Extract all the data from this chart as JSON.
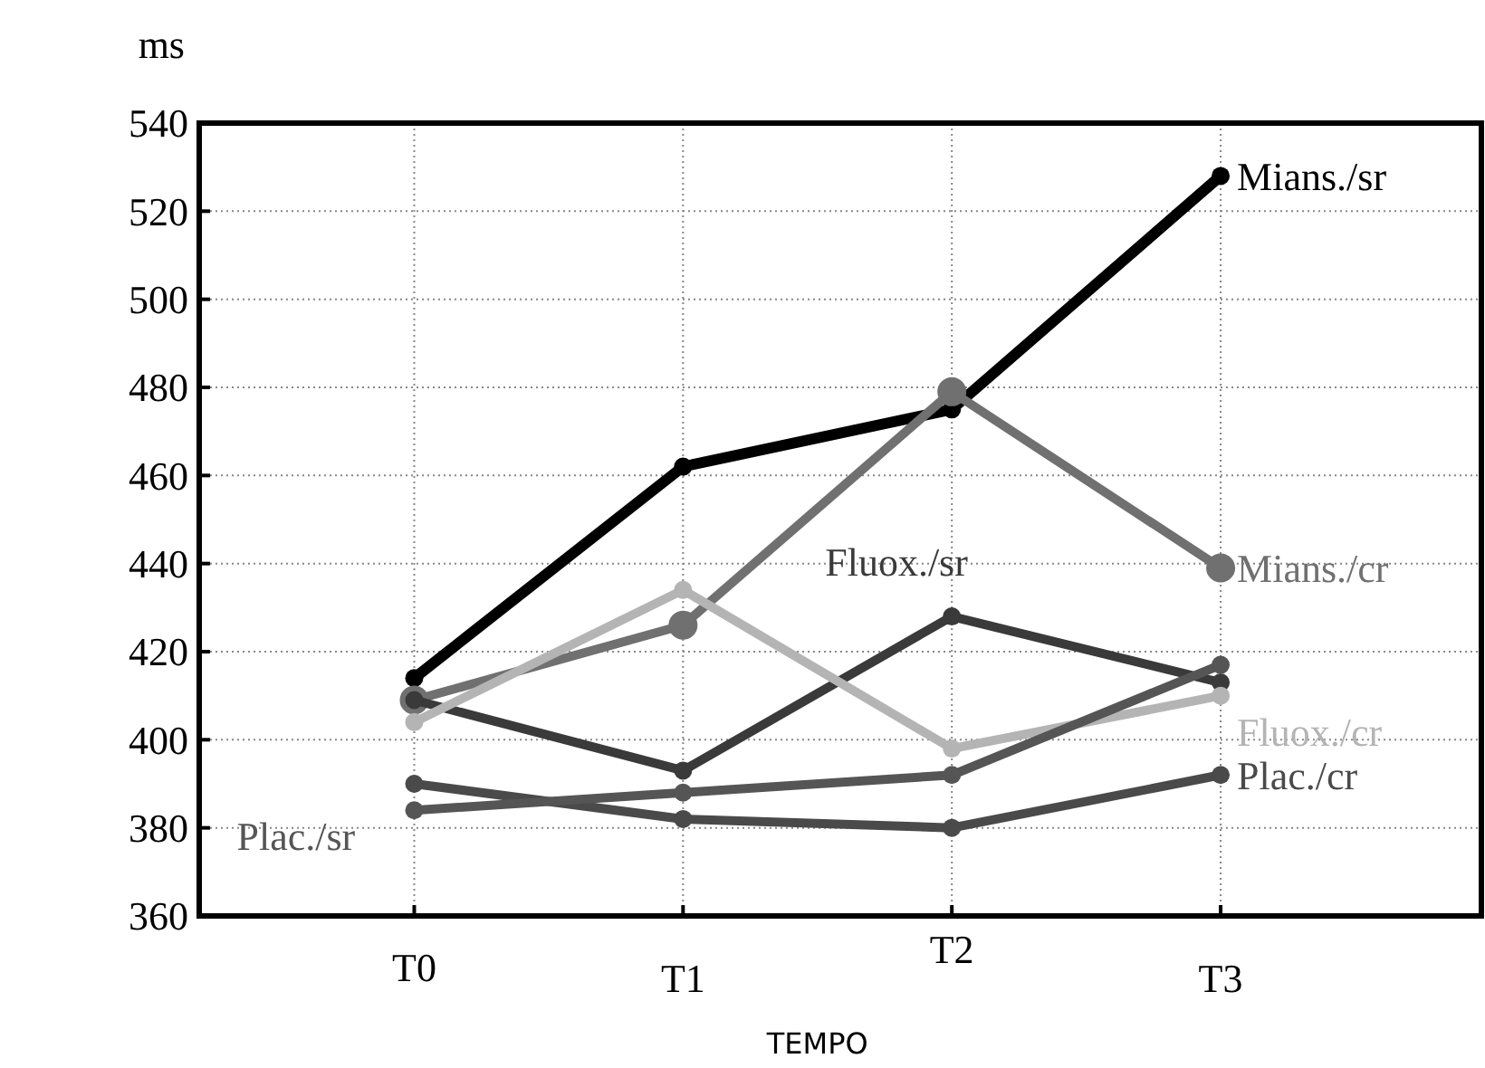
{
  "chart_data": {
    "type": "line",
    "xlabel": "TEMPO",
    "ylabel": "ms",
    "categories": [
      "T0",
      "T1",
      "T2",
      "T3"
    ],
    "ylim": [
      360,
      540
    ],
    "yticks": [
      360,
      380,
      400,
      420,
      440,
      460,
      480,
      500,
      520,
      540
    ],
    "grid": true,
    "marker": "circle",
    "line_style": "solid",
    "series": [
      {
        "name": "Mians./sr",
        "color": "#000000",
        "values": [
          414,
          462,
          475,
          528
        ]
      },
      {
        "name": "Mians./cr",
        "color": "#707070",
        "values": [
          409,
          426,
          479,
          439
        ]
      },
      {
        "name": "Fluox./sr",
        "color": "#3a3a3a",
        "values": [
          409,
          393,
          428,
          413
        ]
      },
      {
        "name": "Fluox./cr",
        "color": "#b4b4b4",
        "values": [
          404,
          434,
          398,
          410
        ]
      },
      {
        "name": "Plac./cr",
        "color": "#4a4a4a",
        "values": [
          390,
          382,
          380,
          392
        ]
      },
      {
        "name": "Plac./sr",
        "color": "#555555",
        "values": [
          384,
          388,
          392,
          417
        ]
      }
    ]
  }
}
